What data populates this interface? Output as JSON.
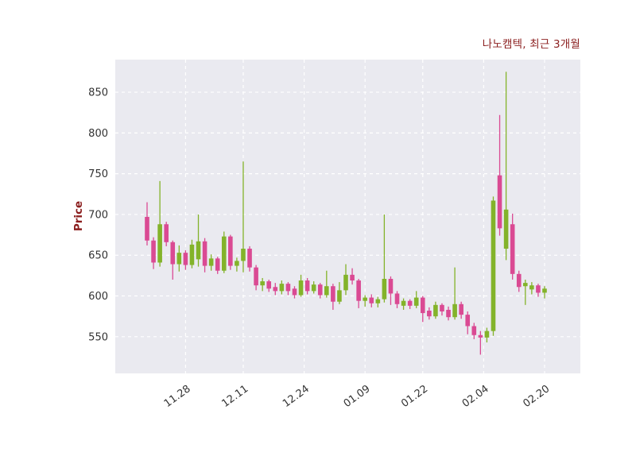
{
  "chart_data": {
    "type": "candlestick",
    "title": "나노캠텍, 최근 3개월",
    "ylabel": "Price",
    "xlabel": "",
    "ylim": [
      505,
      890
    ],
    "yticks": [
      550,
      600,
      650,
      700,
      750,
      800,
      850
    ],
    "xticks": [
      {
        "label": "11.28",
        "index": 6
      },
      {
        "label": "12.11",
        "index": 15
      },
      {
        "label": "12.24",
        "index": 24.5
      },
      {
        "label": "01.09",
        "index": 34
      },
      {
        "label": "01.22",
        "index": 43
      },
      {
        "label": "02.04",
        "index": 52.5
      },
      {
        "label": "02.20",
        "index": 62
      }
    ],
    "grid": "dashed-white",
    "legend": null,
    "colors": {
      "up": "#83b32a",
      "down": "#da4a93",
      "plot_bg": "#eaeaf0",
      "grid": "#ffffff",
      "title": "#8b1e1e",
      "tick": "#333333"
    },
    "candles_format": [
      "date",
      "open",
      "high",
      "low",
      "close"
    ],
    "candles": [
      [
        "11.20",
        697,
        715,
        662,
        668
      ],
      [
        "11.21",
        668,
        672,
        633,
        641
      ],
      [
        "11.22",
        641,
        741,
        636,
        688
      ],
      [
        "11.23",
        688,
        691,
        661,
        666
      ],
      [
        "11.24",
        666,
        668,
        620,
        639
      ],
      [
        "11.27",
        639,
        662,
        630,
        653
      ],
      [
        "11.28",
        653,
        656,
        632,
        638
      ],
      [
        "11.29",
        638,
        669,
        634,
        663
      ],
      [
        "11.30",
        645,
        700,
        636,
        667
      ],
      [
        "12.01",
        667,
        671,
        629,
        637
      ],
      [
        "12.04",
        637,
        651,
        631,
        646
      ],
      [
        "12.05",
        646,
        648,
        627,
        631
      ],
      [
        "12.06",
        631,
        679,
        628,
        673
      ],
      [
        "12.07",
        673,
        675,
        632,
        637
      ],
      [
        "12.08",
        637,
        647,
        630,
        643
      ],
      [
        "12.11",
        643,
        765,
        629,
        658
      ],
      [
        "12.12",
        658,
        661,
        630,
        635
      ],
      [
        "12.13",
        635,
        638,
        607,
        613
      ],
      [
        "12.14",
        613,
        622,
        606,
        618
      ],
      [
        "12.15",
        618,
        620,
        605,
        609
      ],
      [
        "12.18",
        611,
        616,
        601,
        606
      ],
      [
        "12.19",
        606,
        619,
        602,
        615
      ],
      [
        "12.20",
        615,
        617,
        601,
        606
      ],
      [
        "12.21",
        609,
        612,
        597,
        601
      ],
      [
        "12.22",
        601,
        626,
        599,
        619
      ],
      [
        "12.26",
        619,
        622,
        602,
        606
      ],
      [
        "12.27",
        606,
        618,
        603,
        614
      ],
      [
        "12.28",
        614,
        616,
        597,
        601
      ],
      [
        "12.29",
        601,
        631,
        598,
        612
      ],
      [
        "01.02",
        612,
        615,
        583,
        593
      ],
      [
        "01.03",
        593,
        617,
        590,
        607
      ],
      [
        "01.04",
        607,
        639,
        601,
        626
      ],
      [
        "01.05",
        626,
        634,
        614,
        619
      ],
      [
        "01.08",
        619,
        621,
        585,
        594
      ],
      [
        "01.09",
        594,
        601,
        587,
        598
      ],
      [
        "01.10",
        598,
        602,
        586,
        591
      ],
      [
        "01.11",
        591,
        599,
        586,
        596
      ],
      [
        "01.12",
        596,
        700,
        592,
        621
      ],
      [
        "01.15",
        621,
        624,
        589,
        603
      ],
      [
        "01.16",
        603,
        606,
        585,
        590
      ],
      [
        "01.17",
        588,
        597,
        583,
        594
      ],
      [
        "01.18",
        594,
        596,
        584,
        588
      ],
      [
        "01.19",
        588,
        606,
        585,
        598
      ],
      [
        "01.22",
        598,
        600,
        568,
        579
      ],
      [
        "01.23",
        582,
        586,
        571,
        575
      ],
      [
        "01.24",
        575,
        593,
        572,
        589
      ],
      [
        "01.25",
        589,
        591,
        576,
        581
      ],
      [
        "01.26",
        583,
        587,
        570,
        574
      ],
      [
        "01.29",
        574,
        635,
        571,
        590
      ],
      [
        "01.30",
        590,
        593,
        572,
        577
      ],
      [
        "01.31",
        577,
        581,
        553,
        563
      ],
      [
        "02.01",
        563,
        567,
        547,
        552
      ],
      [
        "02.02",
        552,
        557,
        528,
        549
      ],
      [
        "02.05",
        549,
        561,
        543,
        557
      ],
      [
        "02.06",
        557,
        722,
        551,
        717
      ],
      [
        "02.07",
        748,
        822,
        674,
        683
      ],
      [
        "02.08",
        658,
        875,
        644,
        706
      ],
      [
        "02.13",
        688,
        701,
        620,
        627
      ],
      [
        "02.14",
        627,
        631,
        605,
        611
      ],
      [
        "02.15",
        612,
        620,
        589,
        616
      ],
      [
        "02.16",
        608,
        617,
        602,
        613
      ],
      [
        "02.19",
        613,
        615,
        599,
        604
      ],
      [
        "02.20",
        604,
        612,
        597,
        609
      ]
    ]
  }
}
